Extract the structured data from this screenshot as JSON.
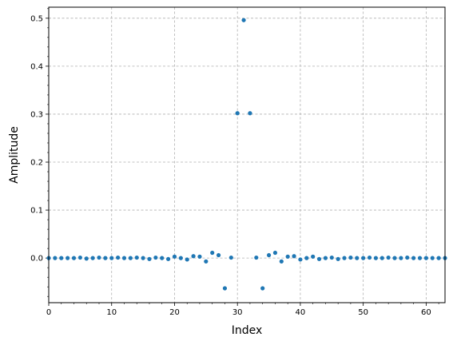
{
  "chart_data": {
    "type": "scatter",
    "title": "",
    "xlabel": "Index",
    "ylabel": "Amplitude",
    "xlim": [
      0,
      63
    ],
    "ylim": [
      -0.093,
      0.523
    ],
    "grid": true,
    "marker_color": "#1f77b4",
    "x_ticks": [
      0,
      10,
      20,
      30,
      40,
      50,
      60
    ],
    "y_ticks": [
      0.0,
      0.1,
      0.2,
      0.3,
      0.4,
      0.5
    ],
    "x_tick_labels": [
      "0",
      "10",
      "20",
      "30",
      "40",
      "50",
      "60"
    ],
    "y_tick_labels": [
      "0.0",
      "0.1",
      "0.2",
      "0.3",
      "0.4",
      "0.5"
    ],
    "x": [
      0,
      1,
      2,
      3,
      4,
      5,
      6,
      7,
      8,
      9,
      10,
      11,
      12,
      13,
      14,
      15,
      16,
      17,
      18,
      19,
      20,
      21,
      22,
      23,
      24,
      25,
      26,
      27,
      28,
      29,
      30,
      31,
      32,
      33,
      34,
      35,
      36,
      37,
      38,
      39,
      40,
      41,
      42,
      43,
      44,
      45,
      46,
      47,
      48,
      49,
      50,
      51,
      52,
      53,
      54,
      55,
      56,
      57,
      58,
      59,
      60,
      61,
      62,
      63
    ],
    "y": [
      0.0,
      0.0,
      0.0,
      0.0,
      0.0,
      0.001,
      -0.001,
      0.0,
      0.001,
      0.0,
      0.0,
      0.001,
      0.0,
      0.0,
      0.001,
      0.0,
      -0.002,
      0.001,
      0.0,
      -0.002,
      0.003,
      0.0,
      -0.003,
      0.004,
      0.003,
      -0.007,
      0.011,
      0.006,
      -0.063,
      0.001,
      0.302,
      0.496,
      0.302,
      0.001,
      -0.063,
      0.006,
      0.011,
      -0.007,
      0.003,
      0.004,
      -0.003,
      0.0,
      0.003,
      -0.002,
      0.0,
      0.001,
      -0.002,
      0.0,
      0.001,
      0.0,
      0.0,
      0.001,
      0.0,
      0.0,
      0.001,
      0.0,
      0.0,
      0.001,
      0.0,
      0.0,
      0.0,
      0.0,
      0.0,
      0.0
    ]
  }
}
